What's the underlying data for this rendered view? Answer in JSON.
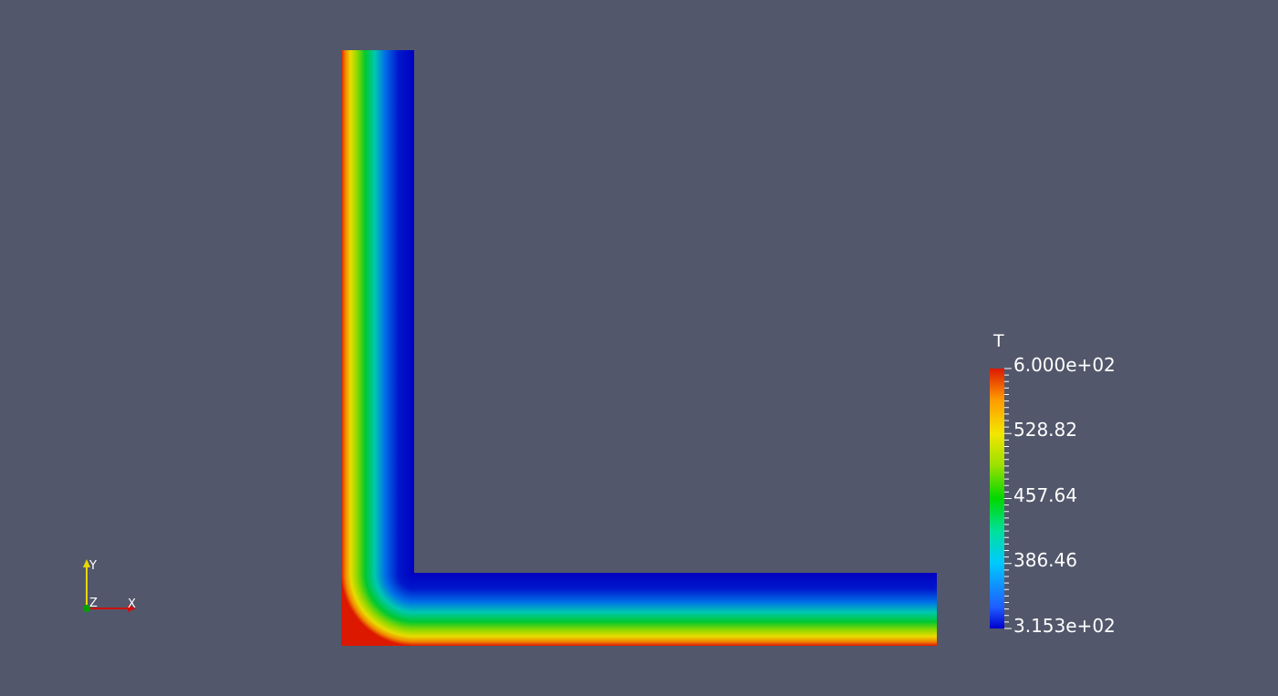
{
  "colorbar": {
    "title": "T",
    "labels": [
      "6.000e+02",
      "528.82",
      "457.64",
      "386.46",
      "3.153e+02"
    ],
    "range": [
      315.3,
      600.0
    ]
  },
  "axes": {
    "x_label": "X",
    "y_label": "Y",
    "z_label": "Z"
  },
  "colors": {
    "background": "#52576b",
    "min_color": "#0000cc",
    "max_color": "#dd1800"
  }
}
